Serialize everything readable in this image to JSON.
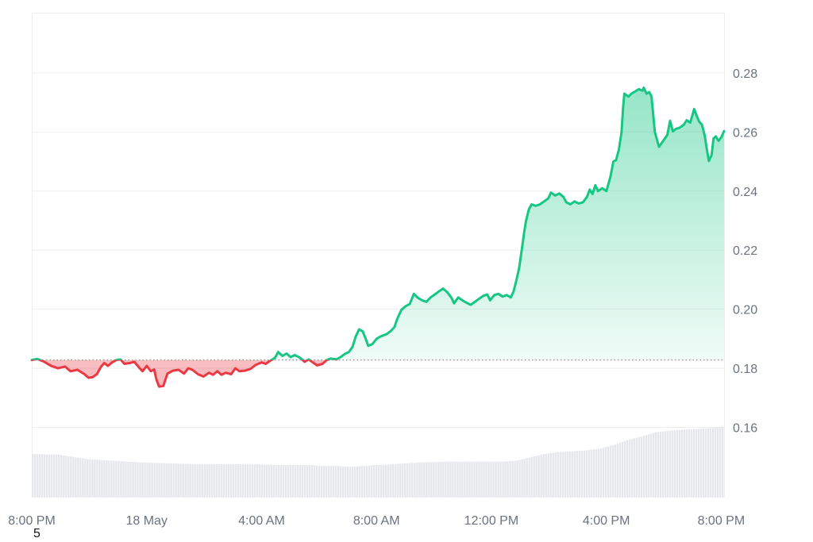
{
  "chart_data": {
    "type": "area",
    "title": "",
    "xlabel": "",
    "ylabel": "",
    "x_axis": {
      "ticks": [
        "8:00 PM",
        "18 May",
        "4:00 AM",
        "8:00 AM",
        "12:00 PM",
        "4:00 PM",
        "8:00 PM"
      ],
      "tick_hours": [
        0,
        4,
        8,
        12,
        16,
        20,
        24
      ],
      "range_hours": [
        0,
        24.1
      ]
    },
    "y_axis": {
      "ticks": [
        "0.28",
        "0.26",
        "0.24",
        "0.22",
        "0.20",
        "0.18",
        "0.16"
      ],
      "tick_values": [
        0.28,
        0.26,
        0.24,
        0.22,
        0.2,
        0.18,
        0.16
      ],
      "range": [
        0.1365,
        0.3004
      ],
      "position": "right"
    },
    "baseline": 0.1828,
    "grid": true,
    "colors": {
      "up_line": "#16c784",
      "down_line": "#ea3943",
      "up_fill": "#16c784",
      "down_fill": "#ea3943",
      "volume": "#e5e7eb",
      "grid": "#eeeeee",
      "baseline": "#888888"
    },
    "series": [
      {
        "values": [
          [
            0.0,
            0.1828
          ],
          [
            0.2,
            0.1832
          ],
          [
            0.45,
            0.1822
          ],
          [
            0.7,
            0.1808
          ],
          [
            0.95,
            0.18
          ],
          [
            1.2,
            0.1806
          ],
          [
            1.4,
            0.179
          ],
          [
            1.65,
            0.1795
          ],
          [
            1.9,
            0.178
          ],
          [
            2.05,
            0.1768
          ],
          [
            2.2,
            0.177
          ],
          [
            2.35,
            0.178
          ],
          [
            2.5,
            0.1805
          ],
          [
            2.62,
            0.1818
          ],
          [
            2.75,
            0.1808
          ],
          [
            2.9,
            0.182
          ],
          [
            3.05,
            0.1828
          ],
          [
            3.2,
            0.183
          ],
          [
            3.35,
            0.1815
          ],
          [
            3.55,
            0.1818
          ],
          [
            3.7,
            0.1822
          ],
          [
            3.9,
            0.18
          ],
          [
            4.0,
            0.179
          ],
          [
            4.15,
            0.1808
          ],
          [
            4.3,
            0.179
          ],
          [
            4.42,
            0.1796
          ],
          [
            4.5,
            0.1762
          ],
          [
            4.6,
            0.1738
          ],
          [
            4.75,
            0.174
          ],
          [
            4.9,
            0.1782
          ],
          [
            5.1,
            0.1792
          ],
          [
            5.3,
            0.1795
          ],
          [
            5.5,
            0.1782
          ],
          [
            5.65,
            0.18
          ],
          [
            5.8,
            0.1795
          ],
          [
            6.0,
            0.178
          ],
          [
            6.2,
            0.1772
          ],
          [
            6.4,
            0.1785
          ],
          [
            6.55,
            0.1778
          ],
          [
            6.7,
            0.179
          ],
          [
            6.85,
            0.1778
          ],
          [
            7.0,
            0.1785
          ],
          [
            7.2,
            0.178
          ],
          [
            7.35,
            0.18
          ],
          [
            7.5,
            0.179
          ],
          [
            7.7,
            0.1792
          ],
          [
            7.9,
            0.1798
          ],
          [
            8.1,
            0.1812
          ],
          [
            8.3,
            0.182
          ],
          [
            8.45,
            0.1815
          ],
          [
            8.6,
            0.1825
          ],
          [
            8.78,
            0.1835
          ],
          [
            8.9,
            0.1855
          ],
          [
            9.05,
            0.1842
          ],
          [
            9.2,
            0.185
          ],
          [
            9.35,
            0.1838
          ],
          [
            9.5,
            0.1845
          ],
          [
            9.7,
            0.1835
          ],
          [
            9.85,
            0.1822
          ],
          [
            10.0,
            0.183
          ],
          [
            10.15,
            0.182
          ],
          [
            10.3,
            0.181
          ],
          [
            10.5,
            0.1815
          ],
          [
            10.65,
            0.1828
          ],
          [
            10.8,
            0.1833
          ],
          [
            11.0,
            0.183
          ],
          [
            11.15,
            0.1838
          ],
          [
            11.3,
            0.1848
          ],
          [
            11.45,
            0.1855
          ],
          [
            11.58,
            0.1872
          ],
          [
            11.7,
            0.1908
          ],
          [
            11.82,
            0.1932
          ],
          [
            11.95,
            0.1925
          ],
          [
            12.05,
            0.1902
          ],
          [
            12.15,
            0.1876
          ],
          [
            12.3,
            0.1882
          ],
          [
            12.45,
            0.19
          ],
          [
            12.6,
            0.1908
          ],
          [
            12.8,
            0.1915
          ],
          [
            12.95,
            0.1925
          ],
          [
            13.1,
            0.194
          ],
          [
            13.2,
            0.1968
          ],
          [
            13.35,
            0.1998
          ],
          [
            13.5,
            0.201
          ],
          [
            13.65,
            0.2018
          ],
          [
            13.8,
            0.2052
          ],
          [
            13.95,
            0.2038
          ],
          [
            14.1,
            0.203
          ],
          [
            14.25,
            0.2025
          ],
          [
            14.4,
            0.204
          ],
          [
            14.55,
            0.205
          ],
          [
            14.7,
            0.206
          ],
          [
            14.85,
            0.207
          ],
          [
            15.0,
            0.2058
          ],
          [
            15.15,
            0.204
          ],
          [
            15.25,
            0.202
          ],
          [
            15.4,
            0.204
          ],
          [
            15.55,
            0.203
          ],
          [
            15.7,
            0.2022
          ],
          [
            15.85,
            0.2015
          ],
          [
            16.0,
            0.2025
          ],
          [
            16.15,
            0.2035
          ],
          [
            16.3,
            0.2045
          ],
          [
            16.45,
            0.205
          ],
          [
            16.55,
            0.203
          ],
          [
            16.7,
            0.2048
          ],
          [
            16.85,
            0.2052
          ],
          [
            17.0,
            0.2043
          ],
          [
            17.15,
            0.2048
          ],
          [
            17.3,
            0.204
          ],
          [
            17.4,
            0.206
          ],
          [
            17.5,
            0.2098
          ],
          [
            17.6,
            0.214
          ],
          [
            17.7,
            0.2205
          ],
          [
            17.78,
            0.226
          ],
          [
            17.85,
            0.23
          ],
          [
            17.95,
            0.2338
          ],
          [
            18.05,
            0.2355
          ],
          [
            18.2,
            0.235
          ],
          [
            18.35,
            0.2355
          ],
          [
            18.5,
            0.2365
          ],
          [
            18.65,
            0.2375
          ],
          [
            18.75,
            0.2395
          ],
          [
            18.9,
            0.2385
          ],
          [
            19.05,
            0.2392
          ],
          [
            19.2,
            0.238
          ],
          [
            19.3,
            0.2362
          ],
          [
            19.45,
            0.2355
          ],
          [
            19.6,
            0.2365
          ],
          [
            19.75,
            0.2358
          ],
          [
            19.9,
            0.2362
          ],
          [
            20.05,
            0.238
          ],
          [
            20.15,
            0.2405
          ],
          [
            20.25,
            0.239
          ],
          [
            20.35,
            0.242
          ],
          [
            20.45,
            0.24
          ],
          [
            20.6,
            0.241
          ],
          [
            20.75,
            0.24
          ],
          [
            20.9,
            0.245
          ],
          [
            21.0,
            0.25
          ],
          [
            21.1,
            0.2505
          ],
          [
            21.2,
            0.254
          ],
          [
            21.3,
            0.26
          ],
          [
            21.35,
            0.268
          ],
          [
            21.4,
            0.273
          ],
          [
            21.55,
            0.272
          ],
          [
            21.65,
            0.273
          ],
          [
            21.8,
            0.2738
          ],
          [
            21.92,
            0.2745
          ],
          [
            22.05,
            0.274
          ],
          [
            22.1,
            0.275
          ],
          [
            22.2,
            0.273
          ],
          [
            22.3,
            0.2735
          ],
          [
            22.38,
            0.272
          ],
          [
            22.5,
            0.26
          ],
          [
            22.65,
            0.255
          ],
          [
            22.8,
            0.257
          ],
          [
            22.95,
            0.259
          ],
          [
            23.05,
            0.2638
          ],
          [
            23.15,
            0.2602
          ],
          [
            23.25,
            0.261
          ],
          [
            23.4,
            0.2615
          ],
          [
            23.55,
            0.2625
          ],
          [
            23.65,
            0.264
          ],
          [
            23.78,
            0.2632
          ],
          [
            23.85,
            0.2655
          ],
          [
            23.92,
            0.2678
          ],
          [
            24.0,
            0.2658
          ],
          [
            24.1,
            0.2635
          ],
          [
            24.2,
            0.2625
          ],
          [
            24.3,
            0.2588
          ],
          [
            24.38,
            0.254
          ],
          [
            24.45,
            0.2502
          ],
          [
            24.55,
            0.2522
          ],
          [
            24.62,
            0.2578
          ],
          [
            24.7,
            0.2585
          ],
          [
            24.8,
            0.257
          ],
          [
            24.9,
            0.2582
          ],
          [
            25.0,
            0.2603
          ]
        ]
      }
    ],
    "volume": [
      [
        0.0,
        0.5
      ],
      [
        1.0,
        0.49
      ],
      [
        2.0,
        0.44
      ],
      [
        3.0,
        0.42
      ],
      [
        4.0,
        0.4
      ],
      [
        5.0,
        0.39
      ],
      [
        6.0,
        0.38
      ],
      [
        7.0,
        0.38
      ],
      [
        8.0,
        0.38
      ],
      [
        9.0,
        0.37
      ],
      [
        10.0,
        0.37
      ],
      [
        10.5,
        0.36
      ],
      [
        11.0,
        0.36
      ],
      [
        11.5,
        0.35
      ],
      [
        12.0,
        0.36
      ],
      [
        13.0,
        0.38
      ],
      [
        14.0,
        0.4
      ],
      [
        15.0,
        0.41
      ],
      [
        16.0,
        0.41
      ],
      [
        17.0,
        0.41
      ],
      [
        17.5,
        0.42
      ],
      [
        18.0,
        0.46
      ],
      [
        18.5,
        0.5
      ],
      [
        19.0,
        0.52
      ],
      [
        19.5,
        0.53
      ],
      [
        20.0,
        0.54
      ],
      [
        20.5,
        0.56
      ],
      [
        21.0,
        0.6
      ],
      [
        21.5,
        0.66
      ],
      [
        22.0,
        0.7
      ],
      [
        22.5,
        0.75
      ],
      [
        23.0,
        0.77
      ],
      [
        23.5,
        0.78
      ],
      [
        24.0,
        0.79
      ],
      [
        24.5,
        0.8
      ],
      [
        25.0,
        0.82
      ]
    ],
    "footnote": "5"
  }
}
